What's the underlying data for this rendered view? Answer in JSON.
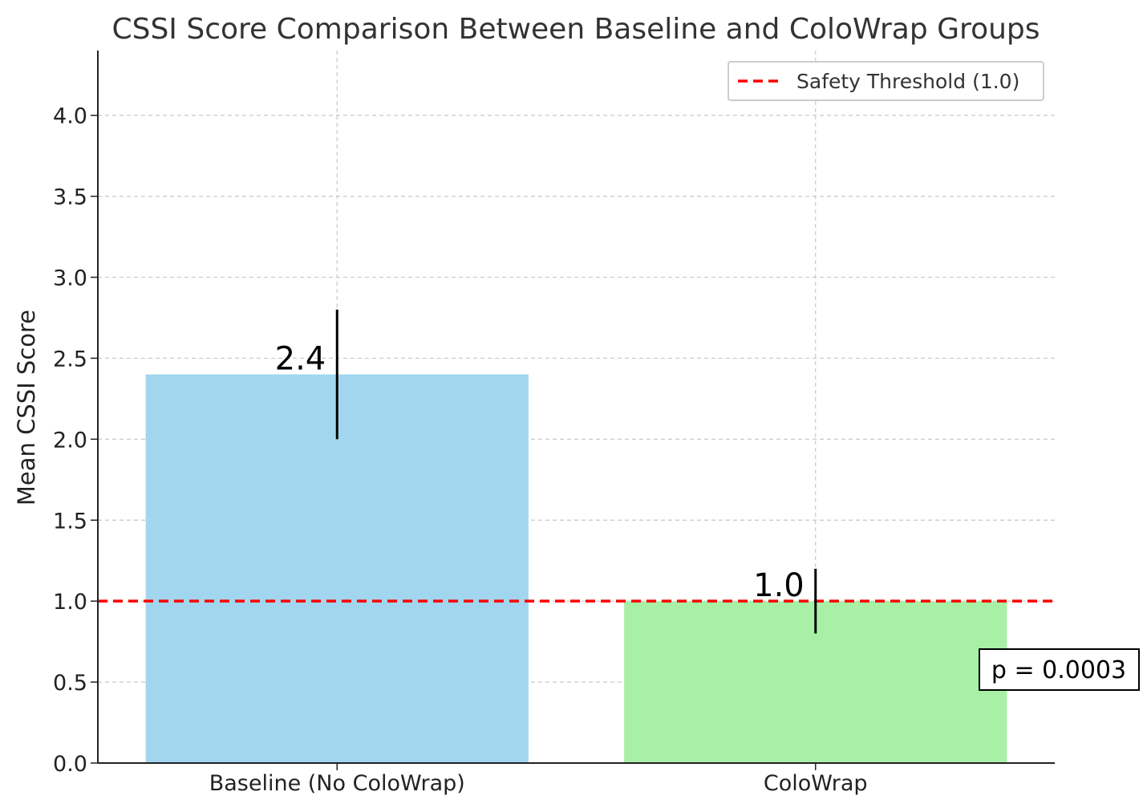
{
  "chart_data": {
    "type": "bar",
    "title": "CSSI Score Comparison Between Baseline and ColoWrap Groups",
    "xlabel": "",
    "ylabel": "Mean CSSI Score",
    "categories": [
      "Baseline (No ColoWrap)",
      "ColoWrap"
    ],
    "values": [
      2.4,
      1.0
    ],
    "error": [
      0.4,
      0.2
    ],
    "colors": [
      "#a1d6ee",
      "#a8f0a5"
    ],
    "data_labels": [
      "2.4",
      "1.0"
    ],
    "ylim": [
      0,
      4.4
    ],
    "yticks": [
      0.0,
      0.5,
      1.0,
      1.5,
      2.0,
      2.5,
      3.0,
      3.5,
      4.0
    ],
    "ytick_labels": [
      "0.0",
      "0.5",
      "1.0",
      "1.5",
      "2.0",
      "2.5",
      "3.0",
      "3.5",
      "4.0"
    ],
    "grid": true,
    "threshold": {
      "value": 1.0,
      "label": "Safety Threshold (1.0)",
      "color": "#ff0000",
      "style": "dashed"
    },
    "legend_position": "top-right",
    "annotation": "p = 0.0003"
  }
}
